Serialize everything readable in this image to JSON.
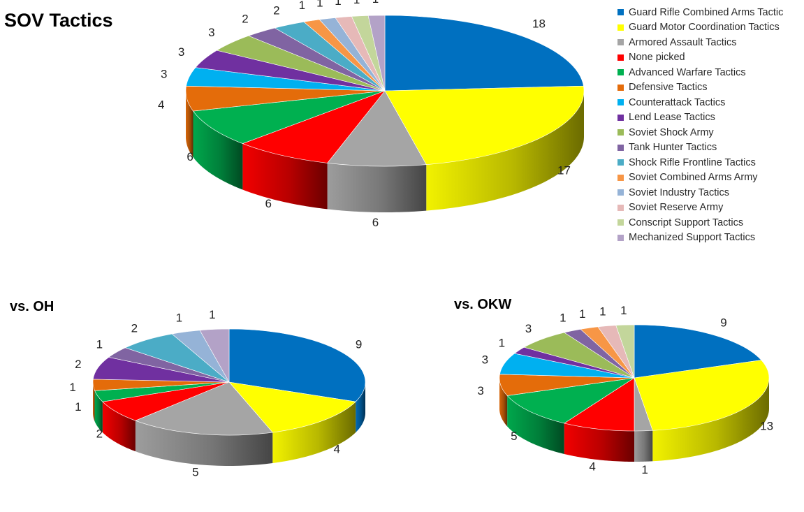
{
  "chart_data": [
    {
      "type": "pie",
      "title": "SOV Tactics",
      "categories": [
        "Guard Rifle Combined Arms Tactic",
        "Guard Motor Coordination Tactics",
        "Armored Assault Tactics",
        "None picked",
        "Advanced Warfare Tactics",
        "Defensive Tactics",
        "Counterattack Tactics",
        "Lend Lease Tactics",
        "Soviet Shock Army",
        "Tank Hunter Tactics",
        "Shock Rifle Frontline Tactics",
        "Soviet Combined Arms Army",
        "Soviet Industry Tactics",
        "Soviet Reserve Army",
        "Conscript Support Tactics",
        "Mechanized Support Tactics"
      ],
      "values": [
        18,
        17,
        6,
        6,
        6,
        4,
        3,
        3,
        3,
        2,
        2,
        1,
        1,
        1,
        1,
        1
      ],
      "legend": "right"
    },
    {
      "type": "pie",
      "title": "vs. OH",
      "categories": [
        "Guard Rifle Combined Arms Tactic",
        "Guard Motor Coordination Tactics",
        "Armored Assault Tactics",
        "None picked",
        "Advanced Warfare Tactics",
        "Defensive Tactics",
        "Lend Lease Tactics",
        "Tank Hunter Tactics",
        "Shock Rifle Frontline Tactics",
        "Soviet Industry Tactics",
        "Mechanized Support Tactics"
      ],
      "values": [
        9,
        4,
        5,
        2,
        1,
        1,
        2,
        1,
        2,
        1,
        1
      ]
    },
    {
      "type": "pie",
      "title": "vs. OKW",
      "categories": [
        "Guard Rifle Combined Arms Tactic",
        "Guard Motor Coordination Tactics",
        "Armored Assault Tactics",
        "None picked",
        "Advanced Warfare Tactics",
        "Defensive Tactics",
        "Counterattack Tactics",
        "Lend Lease Tactics",
        "Soviet Shock Army",
        "Tank Hunter Tactics",
        "Soviet Combined Arms Army",
        "Soviet Reserve Army",
        "Conscript Support Tactics"
      ],
      "values": [
        9,
        13,
        1,
        4,
        5,
        3,
        3,
        1,
        3,
        1,
        1,
        1,
        1
      ]
    }
  ],
  "colors": {
    "Guard Rifle Combined Arms Tactic": "#0070c0",
    "Guard Motor Coordination Tactics": "#ffff00",
    "Armored Assault Tactics": "#a5a5a5",
    "None picked": "#ff0000",
    "Advanced Warfare Tactics": "#00b050",
    "Defensive Tactics": "#e46c0a",
    "Counterattack Tactics": "#00b0f0",
    "Lend Lease Tactics": "#7030a0",
    "Soviet Shock Army": "#9bbb59",
    "Tank Hunter Tactics": "#8064a2",
    "Shock Rifle Frontline Tactics": "#4bacc6",
    "Soviet Combined Arms Army": "#f79646",
    "Soviet Industry Tactics": "#95b3d7",
    "Soviet Reserve Army": "#e6b9b8",
    "Conscript Support Tactics": "#c3d69b",
    "Mechanized Support Tactics": "#b3a2c7"
  }
}
